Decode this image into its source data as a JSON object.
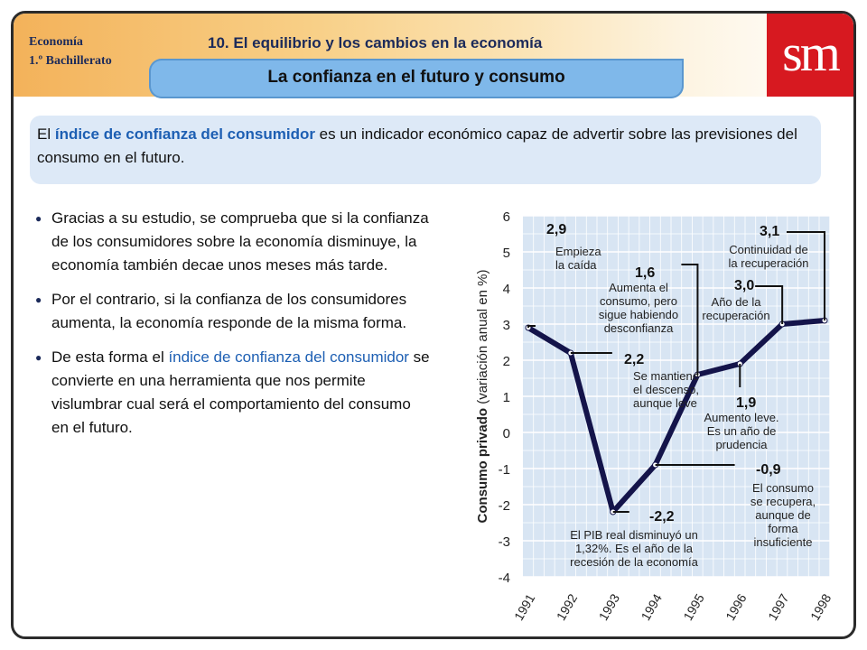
{
  "header": {
    "course_line1": "Economía",
    "course_line2": "1.º Bachillerato",
    "unit_title": "10. El equilibrio y los cambios en la economía",
    "section_title": "La confianza en el futuro y consumo",
    "logo": "sm"
  },
  "intro": {
    "part1": "El ",
    "highlight": "índice de confianza del consumidor",
    "part2": " es un indicador económico capaz de advertir sobre las previsiones del consumo en el futuro."
  },
  "bullets": [
    {
      "text": "Gracias a su estudio, se comprueba que si la confianza de los consumidores sobre la economía disminuye, la economía también decae unos meses más tarde."
    },
    {
      "text": "Por el contrario, si la confianza de los consumidores aumenta, la economía responde de la misma forma."
    },
    {
      "pre": "De esta forma el ",
      "highlight": "índice de confianza del consumidor",
      "post": " se convierte en una herramienta que nos permite vislumbrar cual será el comportamiento del consumo en el futuro."
    }
  ],
  "colors": {
    "accent": "#1d5fb3",
    "line": "#14144a",
    "tab": "#7fb8ea",
    "brand_red": "#d71920"
  },
  "chart_data": {
    "type": "line",
    "ylabel_bold": "Consumo privado",
    "ylabel_rest": " (variación anual en %)",
    "x": [
      "1991",
      "1992",
      "1993",
      "1994",
      "1995",
      "1996",
      "1997",
      "1998"
    ],
    "values": [
      2.9,
      2.2,
      -2.2,
      -0.9,
      1.6,
      1.9,
      3.0,
      3.1
    ],
    "ylim": [
      -4,
      6
    ],
    "yticks": [
      6,
      5,
      4,
      3,
      2,
      1,
      0,
      -1,
      -2,
      -3,
      -4
    ],
    "grid": true,
    "annotations": [
      {
        "value": "2,9",
        "lines": [
          "Empieza",
          "la caída"
        ]
      },
      {
        "value": "2,2",
        "lines": [
          "Se mantiene",
          "el descenso,",
          "aunque leve"
        ]
      },
      {
        "value": "-2,2",
        "lines": [
          "El PIB real disminuyó un",
          "1,32%. Es el año de la",
          "recesión de la economía"
        ]
      },
      {
        "value": "-0,9",
        "lines": [
          "El consumo",
          "se recupera,",
          "aunque de",
          "forma",
          "insuficiente"
        ]
      },
      {
        "value": "1,6",
        "lines": [
          "Aumenta el",
          "consumo, pero",
          "sigue habiendo",
          "desconfianza"
        ]
      },
      {
        "value": "1,9",
        "lines": [
          "Aumento leve.",
          "Es un año de",
          "prudencia"
        ]
      },
      {
        "value": "3,0",
        "lines": [
          "Año de la",
          "recuperación"
        ]
      },
      {
        "value": "3,1",
        "lines": [
          "Continuidad de",
          "la recuperación"
        ]
      }
    ]
  }
}
